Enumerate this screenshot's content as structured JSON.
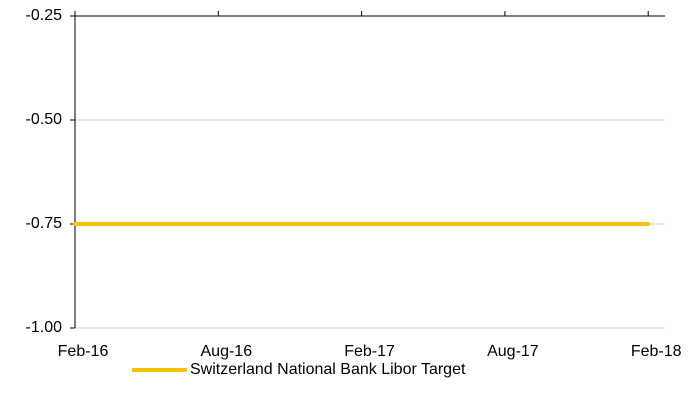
{
  "chart_data": {
    "type": "line",
    "categories": [
      "Feb-16",
      "Aug-16",
      "Feb-17",
      "Aug-17",
      "Feb-18"
    ],
    "series": [
      {
        "name": "Switzerland National Bank Libor Target",
        "color": "#f7c100",
        "values": [
          -0.75,
          -0.75,
          -0.75,
          -0.75,
          -0.75
        ]
      }
    ],
    "ylim": [
      -1.0,
      -0.25
    ],
    "yticks": [
      -0.25,
      {
        "value": -0.5,
        "label": "-0.50"
      },
      -0.75,
      {
        "value": -1.0,
        "label": "-1.00"
      }
    ],
    "grid": true,
    "legend": "bottom"
  }
}
